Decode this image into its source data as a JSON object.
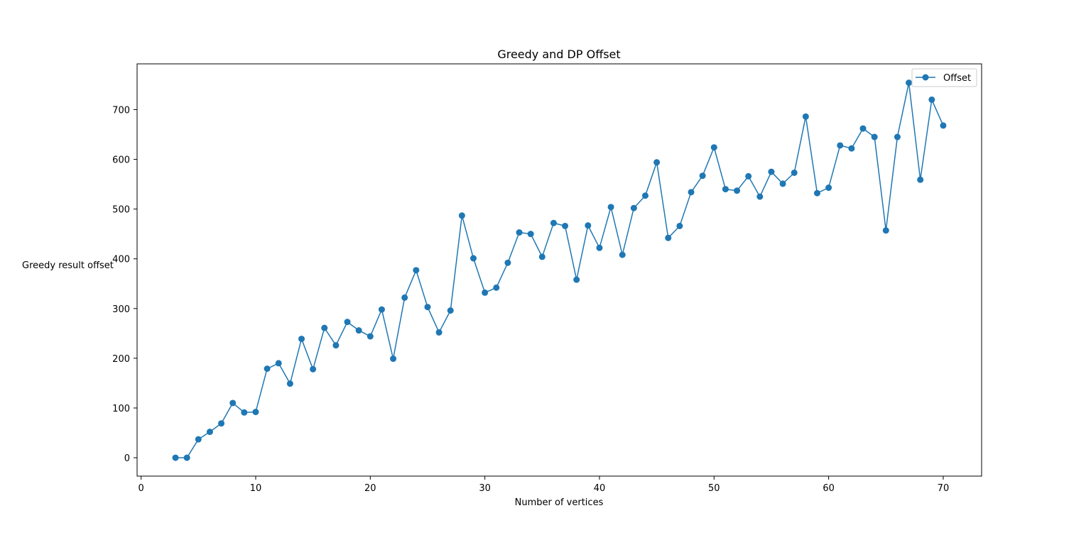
{
  "chart_data": {
    "type": "line",
    "title": "Greedy and DP Offset",
    "xlabel": "Number of vertices",
    "ylabel": "Greedy result offset",
    "xlim": [
      -0.35,
      73.35
    ],
    "ylim": [
      -37,
      792
    ],
    "xticks": [
      0,
      10,
      20,
      30,
      40,
      50,
      60,
      70
    ],
    "yticks": [
      0,
      100,
      200,
      300,
      400,
      500,
      600,
      700
    ],
    "grid": false,
    "legend_position": "top-right",
    "series": [
      {
        "name": "Offset",
        "color": "#1f77b4",
        "marker": "circle",
        "x": [
          3,
          4,
          5,
          6,
          7,
          8,
          9,
          10,
          11,
          12,
          13,
          14,
          15,
          16,
          17,
          18,
          19,
          20,
          21,
          22,
          23,
          24,
          25,
          26,
          27,
          28,
          29,
          30,
          31,
          32,
          33,
          34,
          35,
          36,
          37,
          38,
          39,
          40,
          41,
          42,
          43,
          44,
          45,
          46,
          47,
          48,
          49,
          50,
          51,
          52,
          53,
          54,
          55,
          56,
          57,
          58,
          59,
          60,
          61,
          62,
          63,
          64,
          65,
          66,
          67,
          68,
          69,
          70
        ],
        "y": [
          0,
          0,
          37,
          52,
          69,
          110,
          91,
          92,
          179,
          190,
          149,
          239,
          178,
          261,
          226,
          273,
          256,
          244,
          298,
          199,
          322,
          377,
          303,
          252,
          296,
          487,
          401,
          332,
          342,
          392,
          453,
          450,
          404,
          472,
          466,
          358,
          467,
          422,
          504,
          408,
          502,
          527,
          594,
          442,
          466,
          534,
          567,
          624,
          540,
          537,
          566,
          525,
          575,
          551,
          573,
          686,
          532,
          543,
          628,
          622,
          662,
          645,
          457,
          645,
          754,
          559,
          720,
          668
        ]
      }
    ]
  }
}
